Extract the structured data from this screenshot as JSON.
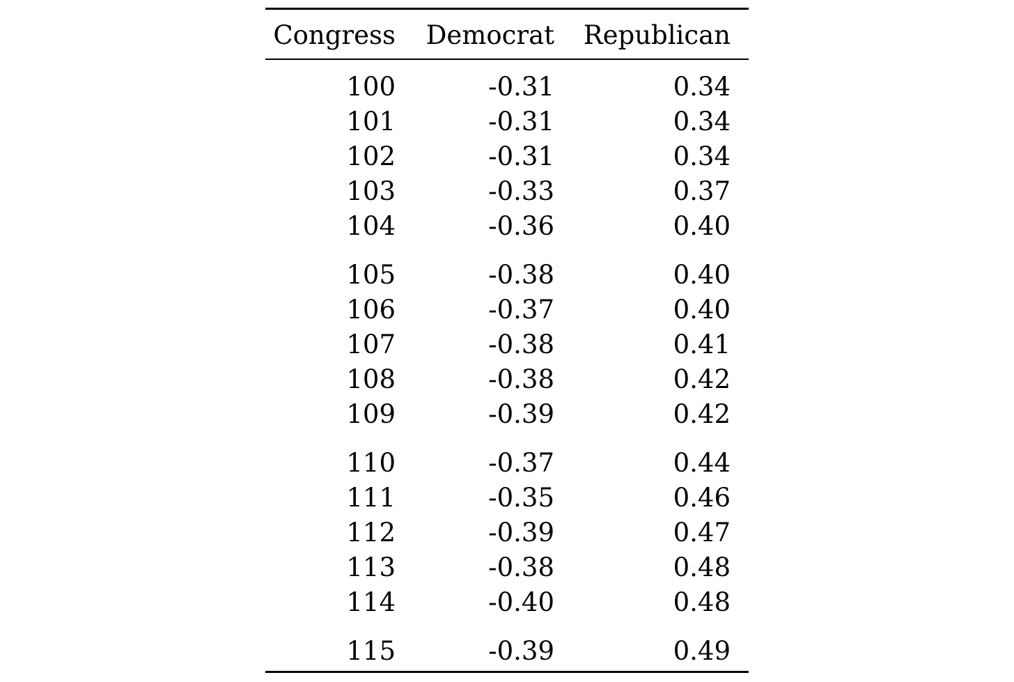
{
  "table": {
    "headers": [
      "Congress",
      "Democrat",
      "Republican"
    ],
    "groups": [
      [
        {
          "congress": "100",
          "democrat": "-0.31",
          "republican": "0.34"
        },
        {
          "congress": "101",
          "democrat": "-0.31",
          "republican": "0.34"
        },
        {
          "congress": "102",
          "democrat": "-0.31",
          "republican": "0.34"
        },
        {
          "congress": "103",
          "democrat": "-0.33",
          "republican": "0.37"
        },
        {
          "congress": "104",
          "democrat": "-0.36",
          "republican": "0.40"
        }
      ],
      [
        {
          "congress": "105",
          "democrat": "-0.38",
          "republican": "0.40"
        },
        {
          "congress": "106",
          "democrat": "-0.37",
          "republican": "0.40"
        },
        {
          "congress": "107",
          "democrat": "-0.38",
          "republican": "0.41"
        },
        {
          "congress": "108",
          "democrat": "-0.38",
          "republican": "0.42"
        },
        {
          "congress": "109",
          "democrat": "-0.39",
          "republican": "0.42"
        }
      ],
      [
        {
          "congress": "110",
          "democrat": "-0.37",
          "republican": "0.44"
        },
        {
          "congress": "111",
          "democrat": "-0.35",
          "republican": "0.46"
        },
        {
          "congress": "112",
          "democrat": "-0.39",
          "republican": "0.47"
        },
        {
          "congress": "113",
          "democrat": "-0.38",
          "republican": "0.48"
        },
        {
          "congress": "114",
          "democrat": "-0.40",
          "republican": "0.48"
        }
      ],
      [
        {
          "congress": "115",
          "democrat": "-0.39",
          "republican": "0.49"
        }
      ]
    ]
  }
}
